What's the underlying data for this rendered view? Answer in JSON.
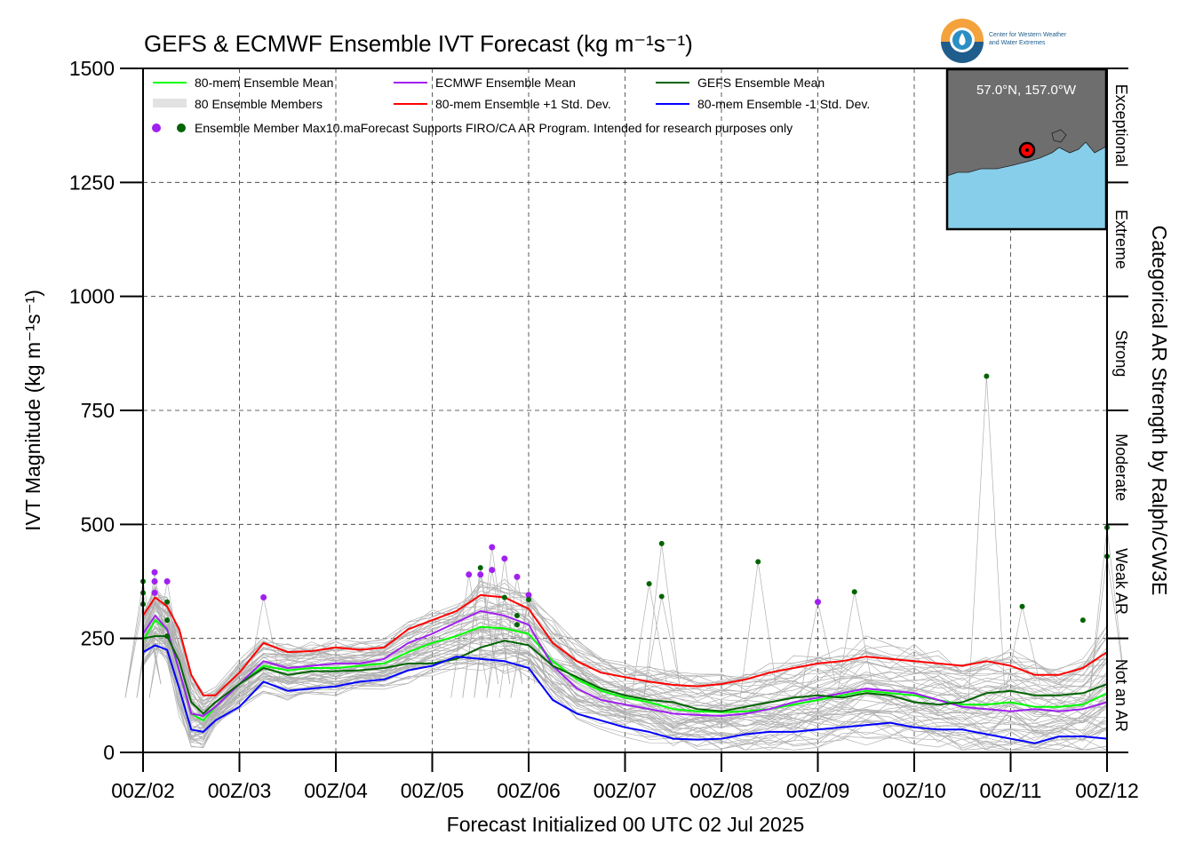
{
  "colors": {
    "ens_mean": "#00ff00",
    "ecmwf_mean": "#a020f0",
    "gefs_mean": "#006400",
    "plus_std": "#ff0000",
    "minus_std": "#0000ff",
    "members": "#b0b0b0",
    "map_water": "#87ceeb",
    "map_land": "#6e6e6e"
  },
  "logo": {
    "org_line1": "Center for Western Weather",
    "org_line2": "and Water Extremes"
  },
  "inset_map": {
    "location_label": "57.0°N, 157.0°W"
  },
  "chart_data": {
    "type": "line",
    "title": "GEFS & ECMWF Ensemble IVT Forecast (kg m⁻¹s⁻¹)",
    "xlabel": "Forecast Initialized 00 UTC 02 Jul 2025",
    "ylabel": "IVT Magnitude (kg m⁻¹s⁻¹)",
    "right_label": "Categorical AR Strength by Ralph/CW3E",
    "ylim": [
      0,
      1500
    ],
    "xlim": [
      0,
      10
    ],
    "x_unit": "days after 00Z/02",
    "y_ticks": [
      "0",
      "250",
      "500",
      "750",
      "1000",
      "1250",
      "1500"
    ],
    "x_ticks": [
      "00Z/02",
      "00Z/03",
      "00Z/04",
      "00Z/05",
      "00Z/06",
      "00Z/07",
      "00Z/08",
      "00Z/09",
      "00Z/10",
      "00Z/11",
      "00Z/12"
    ],
    "grid": true,
    "legend_position": "top-left",
    "legend": {
      "ens_mean": "80-mem Ensemble Mean",
      "members": "80 Ensemble Members",
      "max_dots": "Ensemble Member Max",
      "ecmwf_mean": "ECMWF Ensemble Mean",
      "plus_std": "80-mem Ensemble +1 Std. Dev.",
      "gefs_mean": "GEFS Ensemble Mean",
      "minus_std": "80-mem Ensemble -1 Std. Dev.",
      "note": "10.maForecast Supports FIRO/CA AR Program. Intended for research purposes only"
    },
    "categories": [
      {
        "label": "Not an AR",
        "from": 0,
        "to": 250
      },
      {
        "label": "Weak AR",
        "from": 250,
        "to": 500
      },
      {
        "label": "Moderate",
        "from": 500,
        "to": 750
      },
      {
        "label": "Strong",
        "from": 750,
        "to": 1000
      },
      {
        "label": "Extreme",
        "from": 1000,
        "to": 1250
      },
      {
        "label": "Exceptional",
        "from": 1250,
        "to": 1500
      }
    ],
    "series": [
      {
        "name": "80-mem Ensemble Mean",
        "key": "ens_mean",
        "x": [
          0,
          0.125,
          0.25,
          0.375,
          0.5,
          0.625,
          0.75,
          1.0,
          1.25,
          1.5,
          1.75,
          2.0,
          2.25,
          2.5,
          2.75,
          3.0,
          3.25,
          3.5,
          3.75,
          4.0,
          4.25,
          4.5,
          4.75,
          5.0,
          5.25,
          5.5,
          5.75,
          6.0,
          6.25,
          6.5,
          6.75,
          7.0,
          7.25,
          7.5,
          7.75,
          8.0,
          8.25,
          8.5,
          8.75,
          9.0,
          9.25,
          9.5,
          9.75,
          10.0
        ],
        "y": [
          245,
          290,
          270,
          180,
          85,
          70,
          100,
          150,
          190,
          180,
          185,
          185,
          190,
          195,
          220,
          240,
          255,
          275,
          272,
          260,
          200,
          160,
          135,
          120,
          110,
          95,
          90,
          88,
          90,
          95,
          105,
          115,
          125,
          135,
          130,
          125,
          115,
          105,
          105,
          110,
          100,
          100,
          105,
          130
        ]
      },
      {
        "name": "ECMWF Ensemble Mean",
        "key": "ecmwf_mean",
        "x": [
          0,
          0.125,
          0.25,
          0.375,
          0.5,
          0.625,
          0.75,
          1.0,
          1.25,
          1.5,
          1.75,
          2.0,
          2.25,
          2.5,
          2.75,
          3.0,
          3.25,
          3.5,
          3.75,
          4.0,
          4.25,
          4.5,
          4.75,
          5.0,
          5.25,
          5.5,
          5.75,
          6.0,
          6.25,
          6.5,
          6.75,
          7.0,
          7.25,
          7.5,
          7.75,
          8.0,
          8.25,
          8.5,
          8.75,
          9.0,
          9.25,
          9.5,
          9.75,
          10.0
        ],
        "y": [
          260,
          300,
          270,
          180,
          85,
          80,
          100,
          150,
          200,
          185,
          190,
          195,
          195,
          205,
          240,
          260,
          285,
          310,
          300,
          280,
          190,
          140,
          115,
          105,
          95,
          85,
          82,
          80,
          85,
          95,
          110,
          120,
          130,
          140,
          135,
          130,
          115,
          100,
          95,
          90,
          95,
          90,
          95,
          110
        ]
      },
      {
        "name": "GEFS Ensemble Mean",
        "key": "gefs_mean",
        "x": [
          0,
          0.125,
          0.25,
          0.375,
          0.5,
          0.625,
          0.75,
          1.0,
          1.25,
          1.5,
          1.75,
          2.0,
          2.25,
          2.5,
          2.75,
          3.0,
          3.25,
          3.5,
          3.75,
          4.0,
          4.25,
          4.5,
          4.75,
          5.0,
          5.25,
          5.5,
          5.75,
          6.0,
          6.25,
          6.5,
          6.75,
          7.0,
          7.25,
          7.5,
          7.75,
          8.0,
          8.25,
          8.5,
          8.75,
          9.0,
          9.25,
          9.5,
          9.75,
          10.0
        ],
        "y": [
          250,
          255,
          255,
          200,
          110,
          85,
          110,
          150,
          185,
          170,
          178,
          178,
          180,
          185,
          195,
          195,
          205,
          230,
          245,
          235,
          190,
          165,
          140,
          125,
          115,
          110,
          95,
          90,
          100,
          110,
          120,
          125,
          120,
          130,
          125,
          110,
          105,
          110,
          130,
          135,
          125,
          125,
          130,
          150
        ]
      },
      {
        "name": "80-mem Ensemble +1 Std. Dev.",
        "key": "plus_std",
        "x": [
          0,
          0.125,
          0.25,
          0.375,
          0.5,
          0.625,
          0.75,
          1.0,
          1.25,
          1.5,
          1.75,
          2.0,
          2.25,
          2.5,
          2.75,
          3.0,
          3.25,
          3.5,
          3.75,
          4.0,
          4.25,
          4.5,
          4.75,
          5.0,
          5.25,
          5.5,
          5.75,
          6.0,
          6.25,
          6.5,
          6.75,
          7.0,
          7.25,
          7.5,
          7.75,
          8.0,
          8.25,
          8.5,
          8.75,
          9.0,
          9.25,
          9.5,
          9.75,
          10.0
        ],
        "y": [
          300,
          340,
          320,
          270,
          170,
          125,
          125,
          175,
          240,
          220,
          222,
          230,
          225,
          230,
          270,
          290,
          310,
          345,
          340,
          315,
          240,
          200,
          175,
          165,
          155,
          148,
          145,
          150,
          160,
          175,
          185,
          195,
          200,
          210,
          205,
          200,
          195,
          190,
          200,
          190,
          170,
          170,
          185,
          220
        ]
      },
      {
        "name": "80-mem Ensemble -1 Std. Dev.",
        "key": "minus_std",
        "x": [
          0,
          0.125,
          0.25,
          0.375,
          0.5,
          0.625,
          0.75,
          1.0,
          1.25,
          1.5,
          1.75,
          2.0,
          2.25,
          2.5,
          2.75,
          3.0,
          3.25,
          3.5,
          3.75,
          4.0,
          4.25,
          4.5,
          4.75,
          5.0,
          5.25,
          5.5,
          5.75,
          6.0,
          6.25,
          6.5,
          6.75,
          7.0,
          7.25,
          7.5,
          7.75,
          8.0,
          8.25,
          8.5,
          8.75,
          9.0,
          9.25,
          9.5,
          9.75,
          10.0
        ],
        "y": [
          220,
          235,
          225,
          140,
          50,
          45,
          70,
          100,
          155,
          135,
          140,
          145,
          155,
          160,
          180,
          190,
          210,
          205,
          200,
          185,
          115,
          85,
          70,
          55,
          45,
          30,
          28,
          30,
          40,
          45,
          45,
          50,
          55,
          60,
          65,
          55,
          50,
          50,
          40,
          30,
          20,
          35,
          35,
          30
        ]
      }
    ],
    "max_points": [
      {
        "model": "ecmwf",
        "x": 0.12,
        "y": 395
      },
      {
        "model": "ecmwf",
        "x": 0.12,
        "y": 375
      },
      {
        "model": "ecmwf",
        "x": 0.12,
        "y": 350
      },
      {
        "model": "ecmwf",
        "x": 0.25,
        "y": 375
      },
      {
        "model": "ecmwf",
        "x": 1.25,
        "y": 340
      },
      {
        "model": "ecmwf",
        "x": 3.38,
        "y": 390
      },
      {
        "model": "ecmwf",
        "x": 3.5,
        "y": 390
      },
      {
        "model": "ecmwf",
        "x": 3.62,
        "y": 450
      },
      {
        "model": "ecmwf",
        "x": 3.62,
        "y": 400
      },
      {
        "model": "ecmwf",
        "x": 3.75,
        "y": 425
      },
      {
        "model": "ecmwf",
        "x": 3.88,
        "y": 385
      },
      {
        "model": "ecmwf",
        "x": 4.0,
        "y": 345
      },
      {
        "model": "ecmwf",
        "x": 7.0,
        "y": 330
      },
      {
        "model": "gefs",
        "x": 0.0,
        "y": 375
      },
      {
        "model": "gefs",
        "x": 0.0,
        "y": 350
      },
      {
        "model": "gefs",
        "x": 0.0,
        "y": 325
      },
      {
        "model": "gefs",
        "x": 0.25,
        "y": 330
      },
      {
        "model": "gefs",
        "x": 0.25,
        "y": 290
      },
      {
        "model": "gefs",
        "x": 0.25,
        "y": 255
      },
      {
        "model": "gefs",
        "x": 3.5,
        "y": 405
      },
      {
        "model": "gefs",
        "x": 3.75,
        "y": 340
      },
      {
        "model": "gefs",
        "x": 3.88,
        "y": 300
      },
      {
        "model": "gefs",
        "x": 3.88,
        "y": 280
      },
      {
        "model": "gefs",
        "x": 4.0,
        "y": 335
      },
      {
        "model": "gefs",
        "x": 5.25,
        "y": 370
      },
      {
        "model": "gefs",
        "x": 5.38,
        "y": 458
      },
      {
        "model": "gefs",
        "x": 5.38,
        "y": 342
      },
      {
        "model": "gefs",
        "x": 6.38,
        "y": 418
      },
      {
        "model": "gefs",
        "x": 7.38,
        "y": 352
      },
      {
        "model": "gefs",
        "x": 8.75,
        "y": 825
      },
      {
        "model": "gefs",
        "x": 9.12,
        "y": 320
      },
      {
        "model": "gefs",
        "x": 9.75,
        "y": 290
      },
      {
        "model": "gefs",
        "x": 10.0,
        "y": 493
      },
      {
        "model": "gefs",
        "x": 10.0,
        "y": 430
      }
    ]
  }
}
